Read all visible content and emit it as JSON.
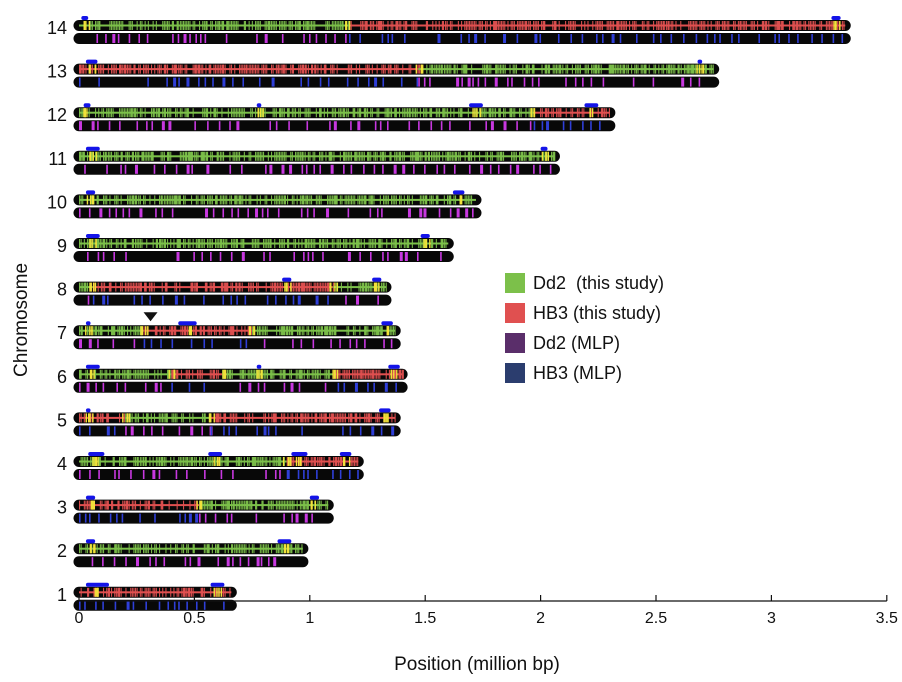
{
  "chart_data": {
    "type": "chromosome_map",
    "xlabel": "Position (million bp)",
    "ylabel": "Chromosome",
    "xlim": [
      0,
      3.5
    ],
    "x_ticks": [
      0,
      0.5,
      1,
      1.5,
      2,
      2.5,
      3,
      3.5
    ],
    "x_tick_labels": [
      "0",
      "0.5",
      "1",
      "1.5",
      "2",
      "2.5",
      "3",
      "3.5"
    ],
    "chromosomes": [
      {
        "label": "1",
        "length": 0.66,
        "top_segments": [
          {
            "from": 0,
            "to": 0.66,
            "parent": "HB3"
          }
        ],
        "markers": [
          [
            0.03,
            0.13
          ],
          [
            0.57,
            0.63
          ]
        ]
      },
      {
        "label": "2",
        "length": 0.97,
        "top_segments": [
          {
            "from": 0,
            "to": 0.97,
            "parent": "Dd2"
          }
        ],
        "markers": [
          [
            0.03,
            0.07
          ],
          [
            0.86,
            0.92
          ]
        ]
      },
      {
        "label": "3",
        "length": 1.08,
        "top_segments": [
          {
            "from": 0,
            "to": 0.52,
            "parent": "HB3"
          },
          {
            "from": 0.52,
            "to": 1.08,
            "parent": "Dd2"
          }
        ],
        "markers": [
          [
            0.03,
            0.07
          ],
          [
            1.0,
            1.04
          ]
        ]
      },
      {
        "label": "4",
        "length": 1.21,
        "top_segments": [
          {
            "from": 0,
            "to": 0.9,
            "parent": "Dd2"
          },
          {
            "from": 0.9,
            "to": 1.21,
            "parent": "HB3"
          }
        ],
        "markers": [
          [
            0.04,
            0.11
          ],
          [
            0.56,
            0.62
          ],
          [
            0.92,
            0.99
          ],
          [
            1.13,
            1.18
          ]
        ]
      },
      {
        "label": "5",
        "length": 1.37,
        "top_segments": [
          {
            "from": 0,
            "to": 0.2,
            "parent": "HB3"
          },
          {
            "from": 0.2,
            "to": 0.57,
            "parent": "Dd2"
          },
          {
            "from": 0.57,
            "to": 1.37,
            "parent": "HB3"
          }
        ],
        "markers": [
          [
            0.03,
            0.05
          ],
          [
            1.3,
            1.35
          ]
        ]
      },
      {
        "label": "6",
        "length": 1.4,
        "top_segments": [
          {
            "from": 0,
            "to": 0.4,
            "parent": "Dd2"
          },
          {
            "from": 0.4,
            "to": 0.62,
            "parent": "HB3"
          },
          {
            "from": 0.62,
            "to": 1.1,
            "parent": "Dd2"
          },
          {
            "from": 1.1,
            "to": 1.4,
            "parent": "HB3"
          }
        ],
        "markers": [
          [
            0.03,
            0.09
          ],
          [
            0.77,
            0.79
          ],
          [
            1.34,
            1.39
          ]
        ]
      },
      {
        "label": "7",
        "length": 1.37,
        "top_segments": [
          {
            "from": 0,
            "to": 0.28,
            "parent": "Dd2"
          },
          {
            "from": 0.28,
            "to": 0.75,
            "parent": "HB3"
          },
          {
            "from": 0.75,
            "to": 1.37,
            "parent": "Dd2"
          }
        ],
        "markers": [
          [
            0.03,
            0.05
          ],
          [
            0.43,
            0.51
          ],
          [
            1.31,
            1.36
          ]
        ]
      },
      {
        "label": "8",
        "length": 1.33,
        "top_segments": [
          {
            "from": 0,
            "to": 0.06,
            "parent": "Dd2"
          },
          {
            "from": 0.06,
            "to": 1.1,
            "parent": "HB3"
          },
          {
            "from": 1.1,
            "to": 1.33,
            "parent": "Dd2"
          }
        ],
        "markers": [
          [
            0.88,
            0.92
          ],
          [
            1.27,
            1.31
          ]
        ]
      },
      {
        "label": "9",
        "length": 1.6,
        "top_segments": [
          {
            "from": 0,
            "to": 1.6,
            "parent": "Dd2"
          }
        ],
        "markers": [
          [
            0.03,
            0.09
          ],
          [
            1.48,
            1.52
          ]
        ]
      },
      {
        "label": "10",
        "length": 1.72,
        "top_segments": [
          {
            "from": 0,
            "to": 1.72,
            "parent": "Dd2"
          }
        ],
        "markers": [
          [
            0.03,
            0.07
          ],
          [
            1.62,
            1.67
          ]
        ]
      },
      {
        "label": "11",
        "length": 2.06,
        "top_segments": [
          {
            "from": 0,
            "to": 2.06,
            "parent": "Dd2"
          }
        ],
        "markers": [
          [
            0.03,
            0.09
          ],
          [
            2.0,
            2.03
          ]
        ]
      },
      {
        "label": "12",
        "length": 2.3,
        "top_segments": [
          {
            "from": 0,
            "to": 1.97,
            "parent": "Dd2"
          },
          {
            "from": 1.97,
            "to": 2.3,
            "parent": "HB3"
          }
        ],
        "markers": [
          [
            0.02,
            0.05
          ],
          [
            0.77,
            0.79
          ],
          [
            1.69,
            1.75
          ],
          [
            2.19,
            2.25
          ]
        ]
      },
      {
        "label": "13",
        "length": 2.75,
        "top_segments": [
          {
            "from": 0,
            "to": 1.47,
            "parent": "HB3"
          },
          {
            "from": 1.47,
            "to": 2.75,
            "parent": "Dd2"
          }
        ],
        "markers": [
          [
            0.03,
            0.08
          ],
          [
            2.68,
            2.7
          ]
        ]
      },
      {
        "label": "14",
        "length": 3.32,
        "top_segments": [
          {
            "from": 0,
            "to": 1.17,
            "parent": "Dd2"
          },
          {
            "from": 1.17,
            "to": 3.32,
            "parent": "HB3"
          }
        ],
        "markers": [
          [
            0.01,
            0.04
          ],
          [
            3.26,
            3.3
          ]
        ]
      }
    ],
    "annotations": [
      {
        "type": "arrowhead",
        "chromosome": "7",
        "x": 0.31
      }
    ],
    "legend": {
      "placement": "center-right",
      "entries": [
        {
          "label": "Dd2  (this study)",
          "color": "#7cc04a"
        },
        {
          "label": "HB3 (this study)",
          "color": "#e05050"
        },
        {
          "label": "Dd2 (MLP)",
          "color": "#5a2e6a"
        },
        {
          "label": "HB3 (MLP)",
          "color": "#2b3d6e"
        }
      ]
    },
    "colors": {
      "dd2_this_study": "#7cc04a",
      "hb3_this_study": "#e05050",
      "dd2_mlp": "#c838e0",
      "hb3_mlp": "#2f3fd8",
      "bar_background": "#080808",
      "crossover_marker": "#f2e23a",
      "marker_bar": "#1414e8"
    }
  }
}
